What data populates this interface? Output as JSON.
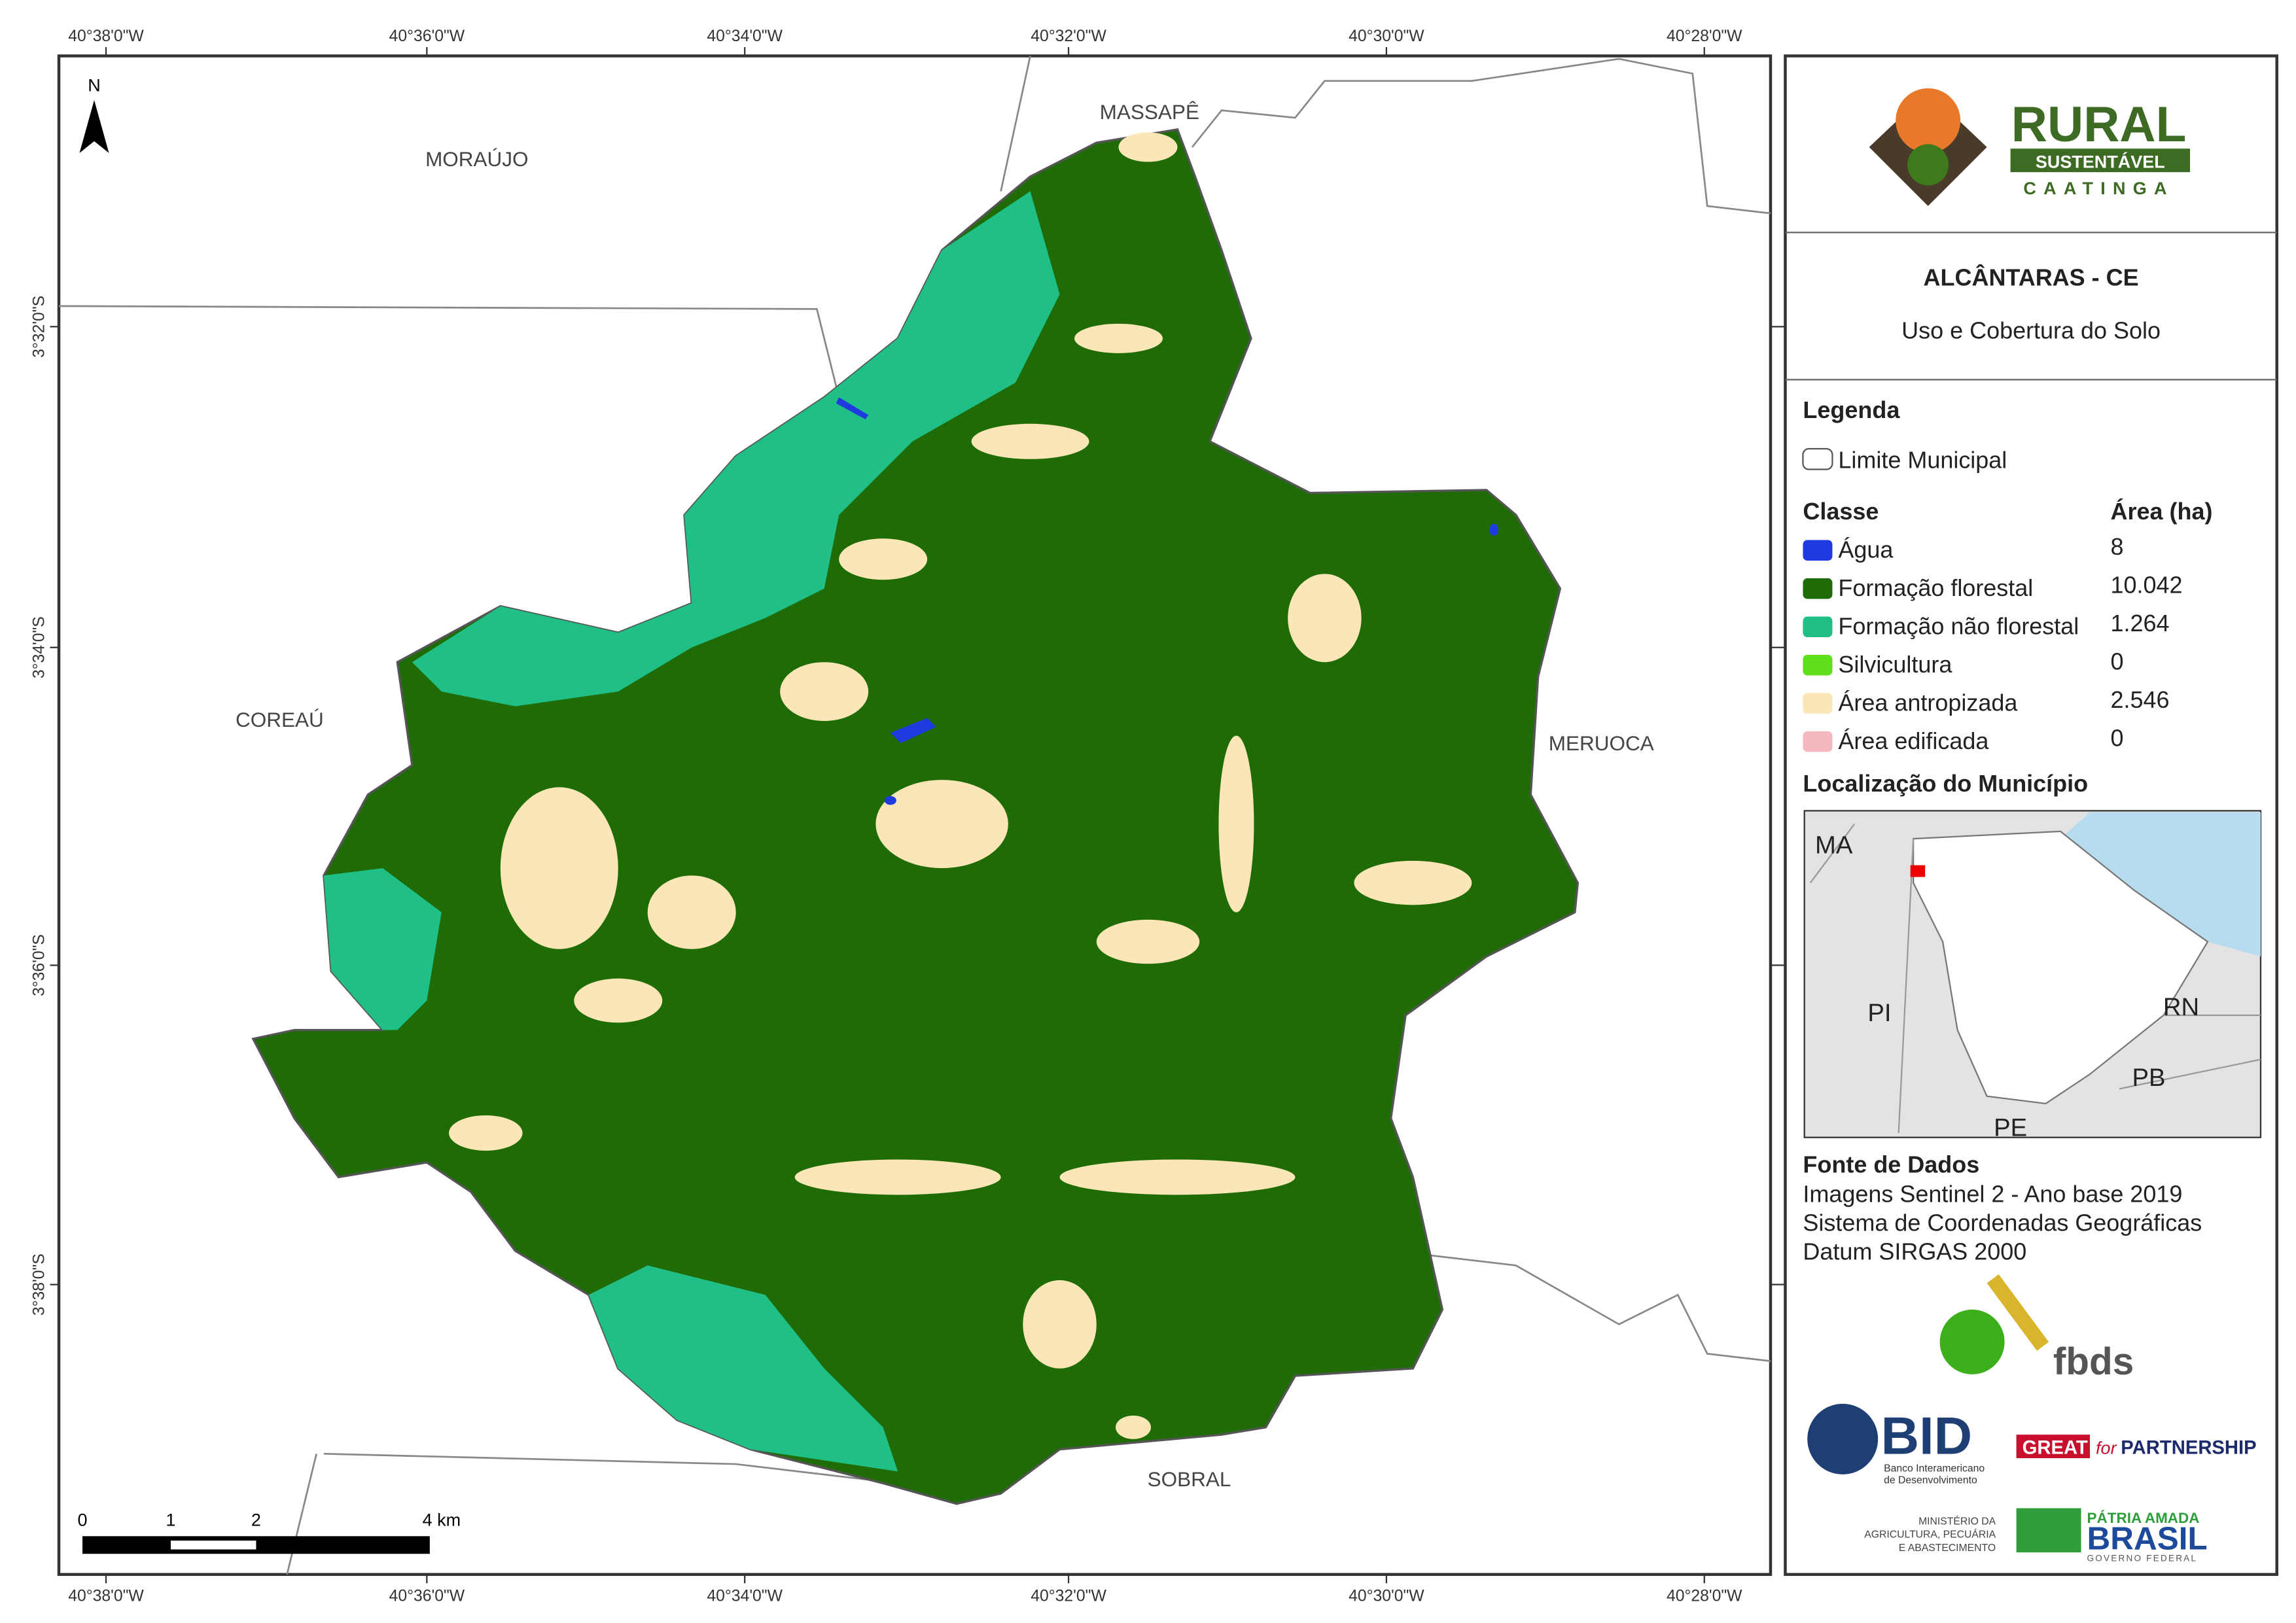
{
  "map": {
    "frame_labels": {
      "top": [
        "40°38'0\"W",
        "40°36'0\"W",
        "40°34'0\"W",
        "40°32'0\"W",
        "40°30'0\"W",
        "40°28'0\"W"
      ],
      "bottom": [
        "40°38'0\"W",
        "40°36'0\"W",
        "40°34'0\"W",
        "40°32'0\"W",
        "40°30'0\"W",
        "40°28'0\"W"
      ],
      "left": [
        "3°32'0\"S",
        "3°34'0\"S",
        "3°36'0\"S",
        "3°38'0\"S"
      ]
    },
    "places": [
      "MORAÚJO",
      "MASSAPÊ",
      "COREAÚ",
      "MERUOCA",
      "SOBRAL"
    ],
    "north": "N",
    "scale": [
      "0",
      "1",
      "2",
      "4 km"
    ]
  },
  "panel": {
    "logo": {
      "name": "RURAL",
      "band": "SUSTENTÁVEL",
      "region": "CAATINGA"
    },
    "title": "ALCÂNTARAS - CE",
    "subtitle": "Uso e Cobertura do Solo",
    "legend": {
      "title": "Legenda",
      "boundary": "Limite Municipal",
      "class_header": "Classe",
      "area_header": "Área (ha)",
      "items": [
        {
          "label": "Água",
          "area": "8",
          "color": "#1f3be0"
        },
        {
          "label": "Formação florestal",
          "area": "10.042",
          "color": "#1f6b06"
        },
        {
          "label": "Formação não florestal",
          "area": "1.264",
          "color": "#1fbf85"
        },
        {
          "label": "Silvicultura",
          "area": "0",
          "color": "#5fe01a"
        },
        {
          "label": "Área antropizada",
          "area": "2.546",
          "color": "#fbe6b8"
        },
        {
          "label": "Área edificada",
          "area": "0",
          "color": "#f6b8bf"
        }
      ]
    },
    "location": {
      "title": "Localização do Município",
      "labels": [
        "MA",
        "PI",
        "RN",
        "PB",
        "PE"
      ]
    },
    "source": {
      "title": "Fonte de Dados",
      "lines": [
        "Imagens Sentinel 2 - Ano base 2019",
        "Sistema de Coordenadas Geográficas",
        "Datum SIRGAS 2000"
      ]
    },
    "partners": {
      "fbds": "fbds",
      "bid": "BID",
      "bid_name": [
        "Banco Interamericano",
        "de Desenvolvimento"
      ],
      "great": "GREAT",
      "great_for": "for",
      "great_partnership": "PARTNERSHIP",
      "ministry": [
        "MINISTÉRIO DA",
        "AGRICULTURA, PECUÁRIA",
        "E ABASTECIMENTO"
      ],
      "brasil_top": "PÁTRIA AMADA",
      "brasil": "BRASIL",
      "brasil_sub": "GOVERNO FEDERAL"
    }
  }
}
